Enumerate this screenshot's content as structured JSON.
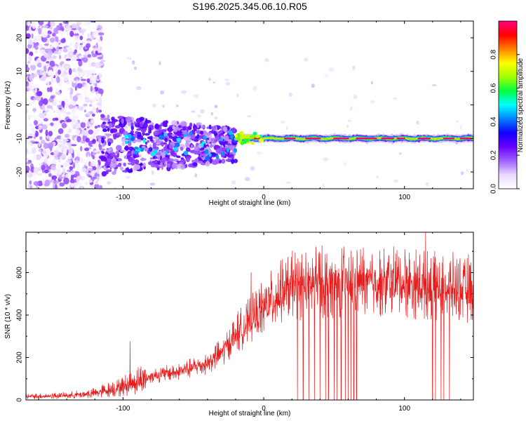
{
  "chart_data": [
    {
      "type": "heatmap",
      "title": "S196.2025.345.06.10.R05",
      "xlabel": "Height of straight line (km)",
      "ylabel": "Frequency (Hz)",
      "xlim": [
        -169,
        149
      ],
      "ylim": [
        -25,
        25
      ],
      "xticks": [
        -100,
        0,
        100
      ],
      "yticks": [
        20,
        10,
        0,
        -10,
        -20
      ],
      "colorbar": {
        "label": "Normalized spectral amplitude",
        "range": [
          0.0,
          1.0
        ],
        "ticks": [
          0.0,
          0.2,
          0.4,
          0.6,
          0.8
        ],
        "tick_labels": [
          "0.0",
          "0.2",
          "0.4",
          "0.6",
          "0.8"
        ],
        "colormap": [
          "#ffffff",
          "#e8d8ff",
          "#a060ff",
          "#6a00ff",
          "#1000ff",
          "#0080ff",
          "#00ffff",
          "#00ff40",
          "#a0ff00",
          "#ffff00",
          "#ff8000",
          "#ff0000",
          "#ff0080"
        ]
      },
      "features": [
        {
          "description": "broadband noise",
          "x_range": [
            -169,
            -115
          ],
          "freq_range": [
            -25,
            25
          ],
          "amplitude": [
            0.02,
            0.15
          ]
        },
        {
          "description": "emerging signal blobs",
          "x_range": [
            -115,
            -20
          ],
          "freq_range": [
            -20,
            -5
          ],
          "amplitude": [
            0.1,
            0.3
          ]
        },
        {
          "description": "narrowband line",
          "x_range": [
            -20,
            149
          ],
          "center_freq": -10,
          "peak_amplitude": 0.98
        }
      ]
    },
    {
      "type": "line",
      "xlabel": "Height of straight line (km)",
      "ylabel": "SNR (10 * v/v)",
      "xlim": [
        -169,
        149
      ],
      "ylim": [
        0,
        790
      ],
      "xticks": [
        -100,
        0,
        100
      ],
      "yticks": [
        0,
        200,
        400,
        600
      ],
      "series": [
        {
          "name": "SNR",
          "color": "#e81a1a",
          "trend": {
            "x": [
              -169,
              -140,
              -120,
              -100,
              -80,
              -60,
              -40,
              -30,
              -20,
              -10,
              0,
              10,
              20,
              30,
              40,
              60,
              80,
              100,
              120,
              149
            ],
            "y": [
              15,
              20,
              30,
              60,
              110,
              130,
              170,
              220,
              300,
              360,
              420,
              480,
              520,
              530,
              540,
              545,
              545,
              540,
              520,
              510
            ]
          },
          "dropout_x": [
            24,
            28,
            32,
            36,
            40,
            44,
            46,
            50,
            52,
            55,
            58,
            60,
            62,
            64,
            66,
            120,
            122,
            126,
            128,
            132
          ],
          "spikes": [
            {
              "x": 115,
              "y": 790
            },
            {
              "x": 107,
              "y": 655
            },
            {
              "x": -95,
              "y": 275
            },
            {
              "x": -9,
              "y": 600
            }
          ]
        }
      ]
    }
  ]
}
